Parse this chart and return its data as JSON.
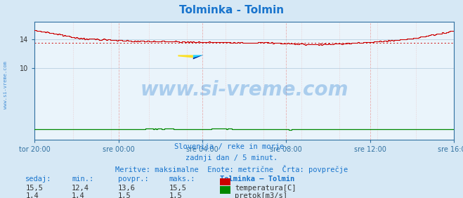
{
  "title": "Tolminka - Tolmin",
  "title_color": "#1874cd",
  "bg_color": "#d6e8f5",
  "plot_bg_color": "#eaf4fb",
  "grid_color_v": "#e8b0b0",
  "grid_color_h": "#b8d0e0",
  "x_labels": [
    "tor 20:00",
    "sre 00:00",
    "sre 04:00",
    "sre 08:00",
    "sre 12:00",
    "sre 16:00"
  ],
  "y_ticks": [
    10,
    14
  ],
  "ylim": [
    0,
    16.5
  ],
  "xlim_max": 287,
  "temp_color": "#cc0000",
  "flow_color": "#008800",
  "avg_temp": 13.6,
  "watermark": "www.si-vreme.com",
  "watermark_color": "#1874cd",
  "watermark_alpha": 0.3,
  "footer_line1": "Slovenija / reke in morje.",
  "footer_line2": "zadnji dan / 5 minut.",
  "footer_line3": "Meritve: maksimalne  Enote: metrične  Črta: povprečje",
  "footer_color": "#1874cd",
  "table_headers": [
    "sedaj:",
    "min.:",
    "povpr.:",
    "maks.:",
    "Tolminka – Tolmin"
  ],
  "table_temp_vals": [
    "15,5",
    "12,4",
    "13,6",
    "15,5"
  ],
  "table_flow_vals": [
    "1,4",
    "1,4",
    "1,5",
    "1,5"
  ],
  "temp_label": "temperatura[C]",
  "flow_label": "pretok[m3/s]",
  "left_label": "www.si-vreme.com",
  "left_label_color": "#1874cd",
  "spine_color": "#3070a0"
}
